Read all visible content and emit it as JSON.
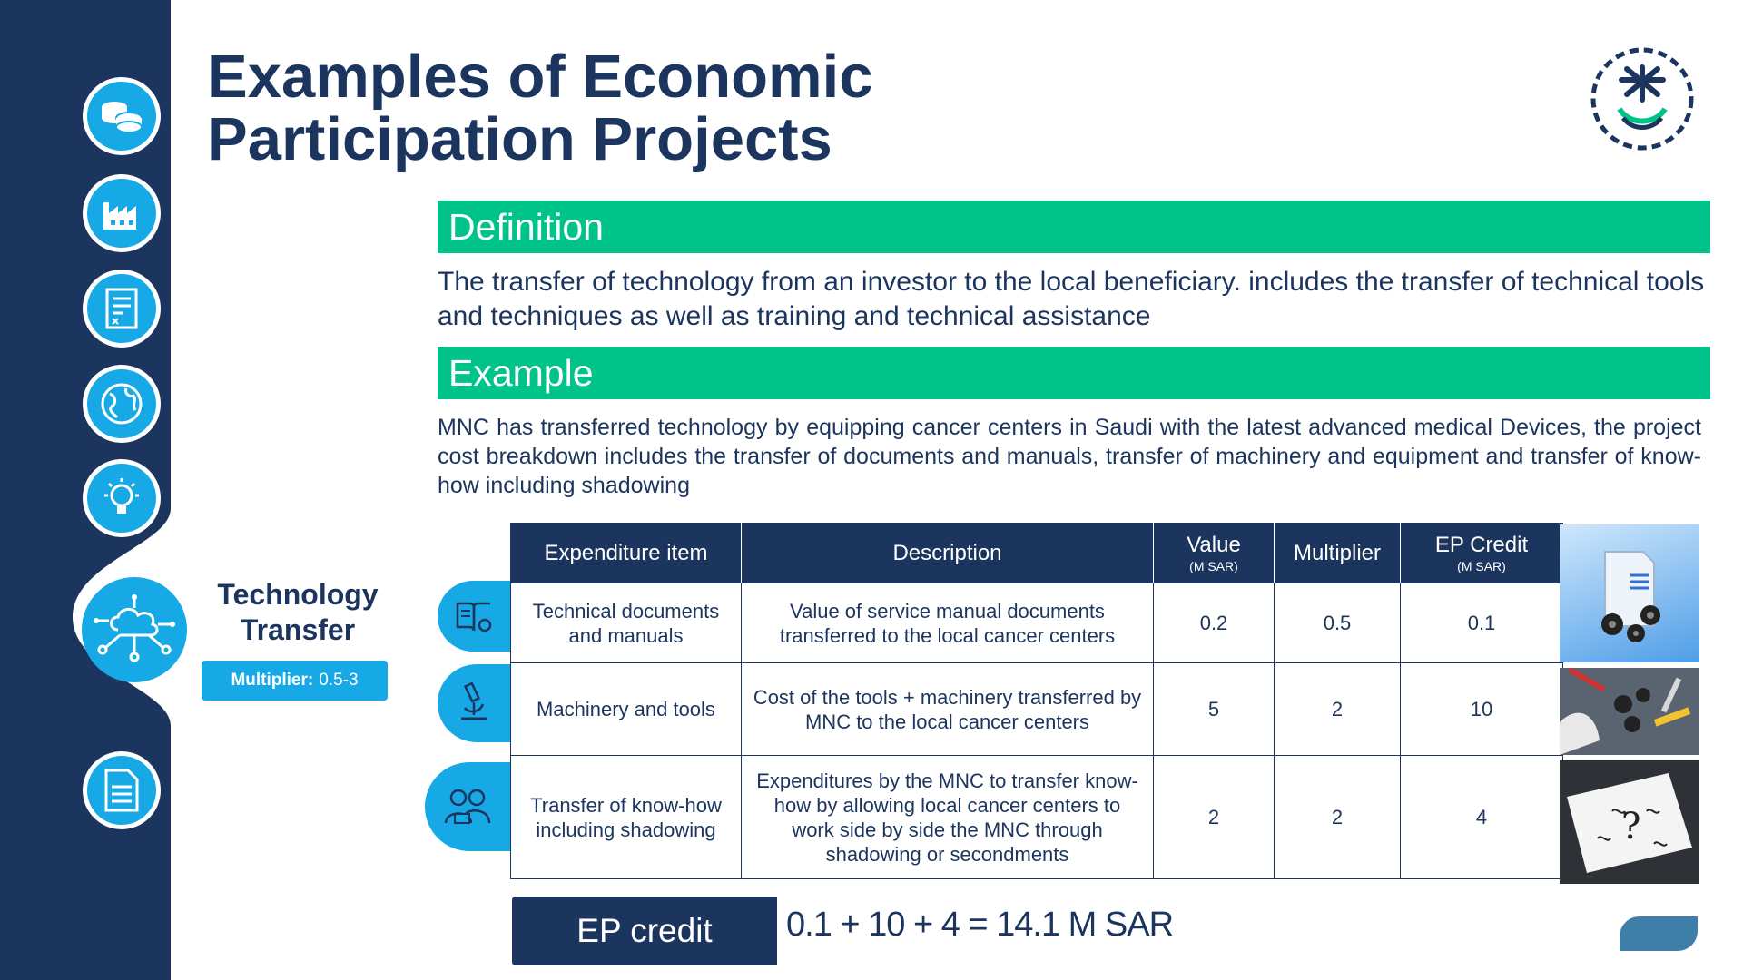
{
  "title": "Examples of Economic Participation Projects",
  "sidebar": {
    "icons": [
      "coins-icon",
      "factory-icon",
      "document-icon",
      "globe-icon",
      "lightbulb-icon",
      "cloud-network-icon",
      "report-icon"
    ],
    "active": "Technology Transfer"
  },
  "topic": {
    "title": "Technology Transfer",
    "multiplier_label": "Multiplier:",
    "multiplier_value": "0.5-3"
  },
  "definition": {
    "heading": "Definition",
    "text": "The transfer of technology from an investor to the local beneficiary. includes the transfer of technical tools and techniques as well as training and technical assistance"
  },
  "example": {
    "heading": "Example",
    "text": "MNC has transferred technology by equipping cancer centers in Saudi with the latest advanced medical Devices, the project cost breakdown includes the transfer of documents and manuals, transfer of machinery and equipment and transfer of know-how including shadowing"
  },
  "table": {
    "headers": {
      "item": "Expenditure item",
      "description": "Description",
      "value": "Value",
      "value_unit": "(M SAR)",
      "multiplier": "Multiplier",
      "credit": "EP Credit",
      "credit_unit": "(M SAR)"
    },
    "rows": [
      {
        "item": "Technical documents and manuals",
        "description": "Value of service manual documents transferred to the local cancer centers",
        "value": "0.2",
        "multiplier": "0.5",
        "credit": "0.1",
        "icon": "book-gear-icon"
      },
      {
        "item": "Machinery and tools",
        "description": "Cost of the tools + machinery transferred by MNC to the local cancer centers",
        "value": "5",
        "multiplier": "2",
        "credit": "10",
        "icon": "microscope-icon"
      },
      {
        "item": "Transfer of know-how including shadowing",
        "description": "Expenditures by the MNC to transfer know-how by allowing local cancer centers to work side by side the MNC through shadowing or secondments",
        "value": "2",
        "multiplier": "2",
        "credit": "4",
        "icon": "people-icon"
      }
    ]
  },
  "ep_credit": {
    "label": "EP credit",
    "equation": "0.1 + 10 + 4 = 14.1 M SAR"
  },
  "colors": {
    "navy": "#1c355e",
    "green": "#00c389",
    "blue": "#16a9e6"
  }
}
